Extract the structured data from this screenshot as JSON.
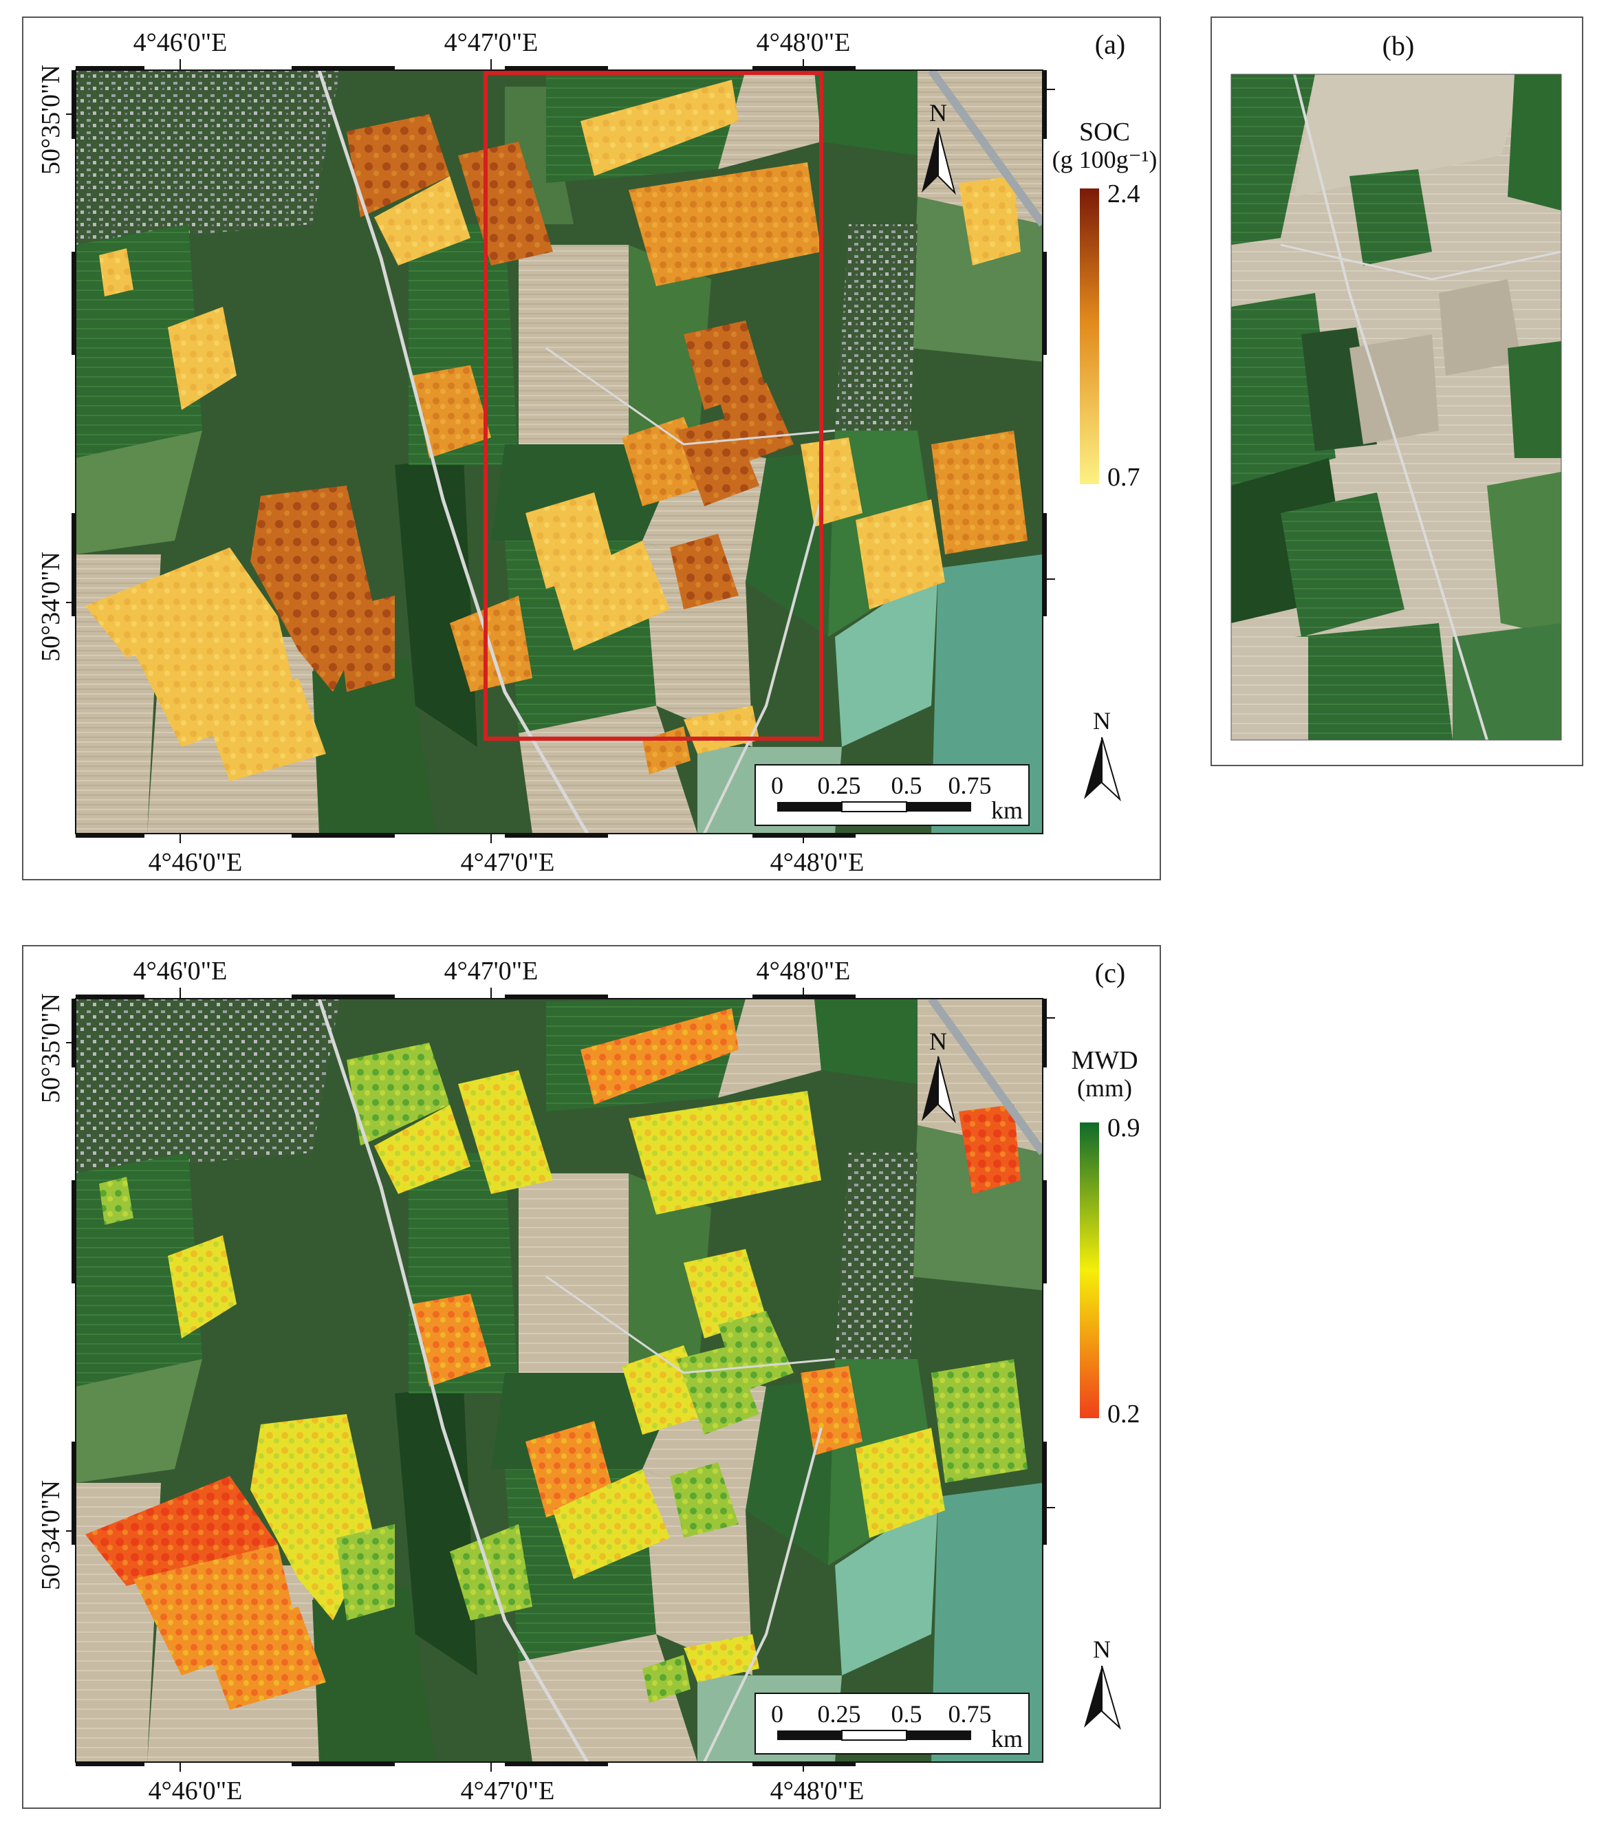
{
  "panels": {
    "a": {
      "tag": "(a)",
      "top_lon": [
        "4°46'0\"E",
        "4°47'0\"E",
        "4°48'0\"E"
      ],
      "bottom_lon": [
        "4°46'0\"E",
        "4°47'0\"E",
        "4°48'0\"E"
      ],
      "left_lat": [
        "50°35'0\"N",
        "50°34'0\"N"
      ],
      "legend": {
        "title_line1": "SOC",
        "title_line2": "(g 100g⁻¹)",
        "max": "2.4",
        "min": "0.7",
        "color_high": "#7a1a08",
        "color_mid": "#e28a1c",
        "color_low": "#fdf184"
      },
      "north_labels": [
        "N",
        "N"
      ],
      "scale": {
        "ticks": [
          "0",
          "0.25",
          "0.5",
          "0.75"
        ],
        "unit": "km"
      },
      "subset_box_color": "#d42020"
    },
    "b": {
      "tag": "(b)"
    },
    "c": {
      "tag": "(c)",
      "top_lon": [
        "4°46'0\"E",
        "4°47'0\"E",
        "4°48'0\"E"
      ],
      "bottom_lon": [
        "4°46'0\"E",
        "4°47'0\"E",
        "4°48'0\"E"
      ],
      "left_lat": [
        "50°35'0\"N",
        "50°34'0\"N"
      ],
      "legend": {
        "title_line1": "MWD",
        "title_line2": "(mm)",
        "max": "0.9",
        "min": "0.2",
        "color_high": "#0f6b2a",
        "color_mid": "#f5ee0a",
        "color_low": "#f0401a"
      },
      "north_labels": [
        "N",
        "N"
      ],
      "scale": {
        "ticks": [
          "0",
          "0.25",
          "0.5",
          "0.75"
        ],
        "unit": "km"
      }
    }
  },
  "palette": {
    "forest": "#1f4a22",
    "field_green": "#2e6b2f",
    "field_green_light": "#5a9150",
    "bare_beige": "#c9bda6",
    "bare_grey": "#a89e8c",
    "road": "#d8d8d8",
    "village": "#8a8e93"
  }
}
